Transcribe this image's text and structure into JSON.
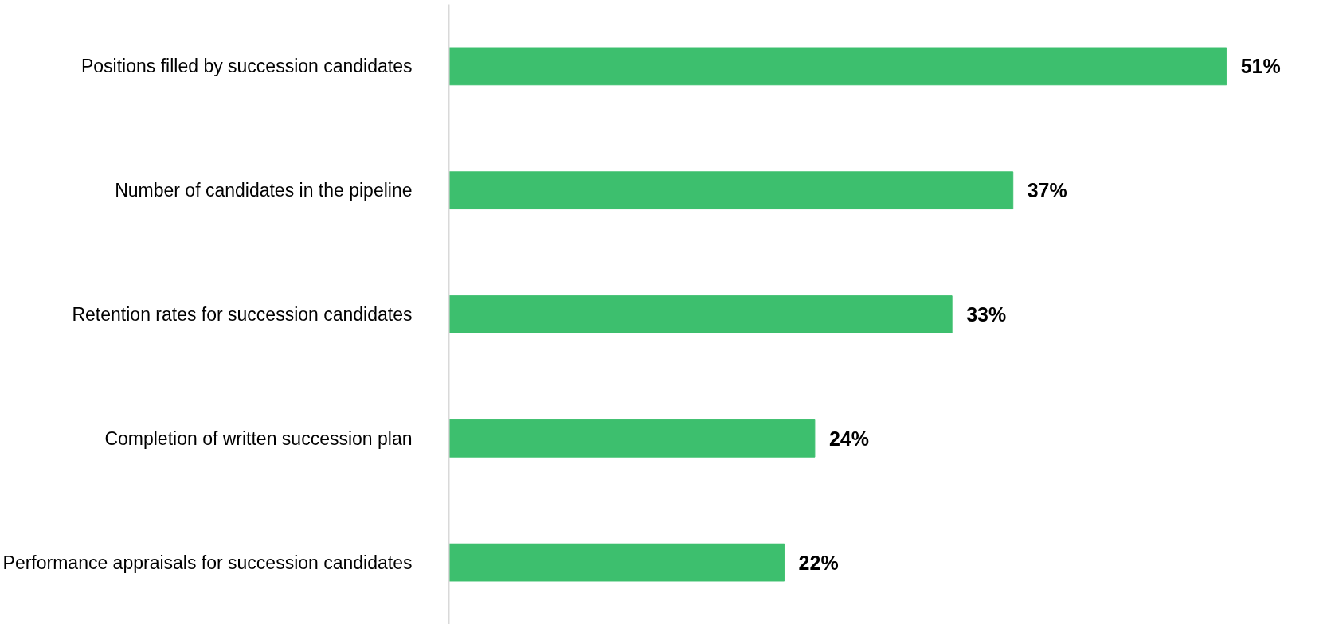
{
  "chart_data": {
    "type": "bar",
    "orientation": "horizontal",
    "categories": [
      "Positions filled by succession candidates",
      "Number of candidates in the pipeline",
      "Retention rates for succession candidates",
      "Completion of written succession plan",
      "Performance appraisals for succession candidates"
    ],
    "values": [
      51,
      37,
      33,
      24,
      22
    ],
    "color": "#3dbf6e",
    "value_labels": [
      "51%",
      "37%",
      "33%",
      "24%",
      "22%"
    ],
    "grid": false
  }
}
